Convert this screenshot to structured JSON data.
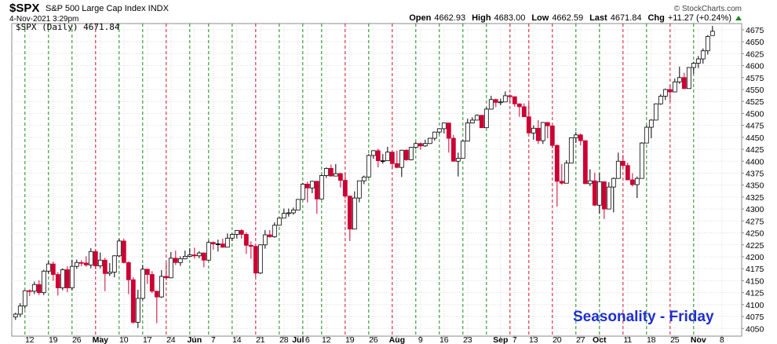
{
  "chart_data": {
    "type": "candlestick",
    "title": "$SPX",
    "subtitle": "S&P 500 Large Cap Index INDX",
    "date": "4-Nov-2021 3:29pm",
    "source": "© StockCharts.com",
    "legend": "$SPX (Daily) 4671.84",
    "annotation": "Seasonality - Friday",
    "quote": [
      {
        "label": "Open",
        "value": "4662.93"
      },
      {
        "label": "High",
        "value": "4683.00"
      },
      {
        "label": "Low",
        "value": "4662.59"
      },
      {
        "label": "Last",
        "value": "4671.84"
      },
      {
        "label": "Chg",
        "value": "+11.27 (+0.24%)"
      }
    ],
    "series": [
      {
        "up_color": "#000000",
        "down_color": "#cc0033",
        "open": [
          4074,
          4080,
          4097,
          4129,
          4128,
          4142,
          4125,
          4170,
          4185,
          4163,
          4135,
          4173,
          4135,
          4180,
          4188,
          4187,
          4183,
          4211,
          4181,
          4193,
          4165,
          4168,
          4202,
          4233,
          4188,
          4152,
          4063,
          4113,
          4174,
          4163,
          4128,
          4116,
          4159,
          4156,
          4197,
          4188,
          4196,
          4201,
          4204,
          4202,
          4208,
          4193,
          4230,
          4227,
          4227,
          4220,
          4239,
          4247,
          4255,
          4247,
          4224,
          4222,
          4166,
          4225,
          4246,
          4242,
          4266,
          4281,
          4291,
          4292,
          4298,
          4320,
          4352,
          4344,
          4358,
          4321,
          4370,
          4385,
          4369,
          4374,
          4360,
          4327,
          4258,
          4323,
          4359,
          4367,
          4412,
          4422,
          4401,
          4401,
          4419,
          4395,
          4387,
          4423,
          4403,
          4429,
          4437,
          4432,
          4437,
          4448,
          4461,
          4468,
          4480,
          4448,
          4400,
          4406,
          4442,
          4480,
          4486,
          4496,
          4470,
          4509,
          4529,
          4523,
          4524,
          4537,
          4535,
          4520,
          4514,
          4493,
          4459,
          4469,
          4443,
          4481,
          4474,
          4433,
          4358,
          4354,
          4396,
          4449,
          4455,
          4443,
          4353,
          4359,
          4308,
          4357,
          4300,
          4346,
          4364,
          4400,
          4391,
          4361,
          4351,
          4364,
          4438,
          4471,
          4486,
          4520,
          4536,
          4550,
          4545,
          4566,
          4575,
          4552,
          4596,
          4605,
          4614,
          4631,
          4662.93
        ],
        "high": [
          4083,
          4103,
          4130,
          4132,
          4148,
          4151,
          4173,
          4191,
          4190,
          4168,
          4176,
          4180,
          4194,
          4194,
          4193,
          4201,
          4218,
          4215,
          4209,
          4198,
          4187,
          4203,
          4238,
          4238,
          4190,
          4157,
          4131,
          4183,
          4175,
          4170,
          4129,
          4172,
          4187,
          4210,
          4213,
          4201,
          4213,
          4218,
          4219,
          4212,
          4209,
          4234,
          4232,
          4236,
          4238,
          4249,
          4249,
          4256,
          4258,
          4251,
          4232,
          4223,
          4226,
          4256,
          4256,
          4272,
          4282,
          4301,
          4301,
          4303,
          4321,
          4355,
          4357,
          4359,
          4359,
          4372,
          4387,
          4393,
          4394,
          4376,
          4376,
          4328,
          4337,
          4359,
          4370,
          4415,
          4423,
          4426,
          4415,
          4430,
          4420,
          4422,
          4424,
          4425,
          4430,
          4440,
          4439,
          4445,
          4449,
          4462,
          4468,
          4480,
          4480,
          4455,
          4418,
          4444,
          4489,
          4492,
          4498,
          4497,
          4513,
          4537,
          4531,
          4531,
          4546,
          4540,
          4536,
          4521,
          4521,
          4521,
          4475,
          4486,
          4482,
          4482,
          4474,
          4435,
          4394,
          4402,
          4450,
          4461,
          4458,
          4444,
          4383,
          4376,
          4375,
          4358,
          4356,
          4366,
          4418,
          4413,
          4397,
          4375,
          4368,
          4440,
          4475,
          4488,
          4521,
          4540,
          4552,
          4559,
          4573,
          4598,
          4585,
          4597,
          4608,
          4620,
          4636,
          4664,
          4683
        ],
        "low": [
          4068,
          4074,
          4091,
          4118,
          4122,
          4120,
          4120,
          4165,
          4150,
          4119,
          4130,
          4126,
          4130,
          4175,
          4180,
          4179,
          4176,
          4174,
          4176,
          4128,
          4160,
          4157,
          4200,
          4186,
          4122,
          4060,
          4051,
          4110,
          4143,
          4124,
          4061,
          4114,
          4151,
          4155,
          4183,
          4181,
          4195,
          4200,
          4196,
          4197,
          4178,
          4192,
          4215,
          4211,
          4219,
          4220,
          4233,
          4238,
          4238,
          4206,
          4196,
          4158,
          4164,
          4217,
          4240,
          4240,
          4265,
          4281,
          4284,
          4288,
          4298,
          4320,
          4314,
          4333,
          4290,
          4321,
          4365,
          4368,
          4369,
          4345,
          4322,
          4233,
          4258,
          4314,
          4352,
          4366,
          4405,
          4387,
          4395,
          4401,
          4385,
          4385,
          4367,
          4401,
          4402,
          4425,
          4424,
          4430,
          4436,
          4443,
          4457,
          4458,
          4418,
          4399,
          4368,
          4406,
          4442,
          4479,
          4486,
          4470,
          4470,
          4508,
          4513,
          4517,
          4524,
          4521,
          4514,
          4493,
          4493,
          4459,
          4445,
          4436,
          4436,
          4448,
          4427,
          4305,
          4351,
          4354,
          4396,
          4438,
          4433,
          4352,
          4348,
          4306,
          4290,
          4279,
          4300,
          4293,
          4364,
          4387,
          4360,
          4347,
          4323,
          4364,
          4438,
          4448,
          4486,
          4518,
          4528,
          4525,
          4545,
          4562,
          4551,
          4552,
          4583,
          4595,
          4604,
          4623,
          4662.59
        ],
        "close": [
          4080,
          4097,
          4129,
          4128,
          4142,
          4125,
          4170,
          4185,
          4163,
          4135,
          4173,
          4135,
          4180,
          4188,
          4187,
          4183,
          4211,
          4181,
          4193,
          4165,
          4168,
          4202,
          4233,
          4188,
          4152,
          4063,
          4113,
          4174,
          4163,
          4128,
          4116,
          4159,
          4156,
          4197,
          4188,
          4196,
          4201,
          4204,
          4202,
          4208,
          4193,
          4230,
          4227,
          4227,
          4220,
          4239,
          4247,
          4255,
          4247,
          4224,
          4222,
          4166,
          4225,
          4246,
          4242,
          4266,
          4281,
          4291,
          4292,
          4298,
          4320,
          4352,
          4344,
          4358,
          4321,
          4370,
          4385,
          4369,
          4374,
          4360,
          4327,
          4258,
          4323,
          4359,
          4367,
          4412,
          4422,
          4401,
          4401,
          4419,
          4395,
          4387,
          4423,
          4403,
          4429,
          4437,
          4432,
          4437,
          4448,
          4461,
          4468,
          4480,
          4448,
          4400,
          4406,
          4442,
          4480,
          4486,
          4496,
          4470,
          4509,
          4529,
          4523,
          4524,
          4537,
          4535,
          4520,
          4514,
          4493,
          4459,
          4469,
          4443,
          4481,
          4474,
          4433,
          4358,
          4354,
          4396,
          4449,
          4455,
          4443,
          4353,
          4359,
          4308,
          4357,
          4300,
          4346,
          4364,
          4400,
          4391,
          4361,
          4351,
          4364,
          4438,
          4471,
          4486,
          4520,
          4536,
          4550,
          4545,
          4566,
          4575,
          4552,
          4596,
          4605,
          4614,
          4631,
          4661,
          4671.84
        ]
      }
    ],
    "fridays": [
      2,
      7,
      12,
      17,
      22,
      27,
      32,
      37,
      41,
      46,
      51,
      56,
      61,
      65,
      70,
      75,
      80,
      85,
      90,
      95,
      100,
      105,
      109,
      114,
      119,
      124,
      129,
      134,
      139,
      144
    ],
    "friday_up_color": "#1a8a1a",
    "friday_down_color": "#d4102a",
    "annotation_color": "#1f2fcf",
    "xlim": [
      -0.8,
      154.2
    ],
    "xticks": [
      {
        "value": 3,
        "label": "12"
      },
      {
        "value": 8,
        "label": "19"
      },
      {
        "value": 13,
        "label": "26"
      },
      {
        "value": 18,
        "label": "May"
      },
      {
        "value": 23,
        "label": "10"
      },
      {
        "value": 28,
        "label": "17"
      },
      {
        "value": 33,
        "label": "24"
      },
      {
        "value": 38,
        "label": "Jun"
      },
      {
        "value": 42,
        "label": "7"
      },
      {
        "value": 47,
        "label": "14"
      },
      {
        "value": 52,
        "label": "21"
      },
      {
        "value": 57,
        "label": "28"
      },
      {
        "value": 60,
        "label": "Jul"
      },
      {
        "value": 62,
        "label": "6"
      },
      {
        "value": 66,
        "label": "12"
      },
      {
        "value": 71,
        "label": "19"
      },
      {
        "value": 76,
        "label": "26"
      },
      {
        "value": 81,
        "label": "Aug"
      },
      {
        "value": 86,
        "label": "9"
      },
      {
        "value": 91,
        "label": "16"
      },
      {
        "value": 96,
        "label": "23"
      },
      {
        "value": 103,
        "label": "Sep"
      },
      {
        "value": 106,
        "label": "7"
      },
      {
        "value": 110,
        "label": "13"
      },
      {
        "value": 115,
        "label": "20"
      },
      {
        "value": 120,
        "label": "27"
      },
      {
        "value": 124,
        "label": "Oct"
      },
      {
        "value": 130,
        "label": "11"
      },
      {
        "value": 135,
        "label": "18"
      },
      {
        "value": 140,
        "label": "25"
      },
      {
        "value": 145,
        "label": "Nov"
      },
      {
        "value": 150,
        "label": "8"
      }
    ],
    "ylim": [
      4034,
      4688
    ],
    "yticks": [
      4050,
      4075,
      4100,
      4125,
      4150,
      4175,
      4200,
      4225,
      4250,
      4275,
      4300,
      4325,
      4350,
      4375,
      4400,
      4425,
      4450,
      4475,
      4500,
      4525,
      4550,
      4575,
      4600,
      4625,
      4650,
      4675
    ],
    "grid": true
  }
}
